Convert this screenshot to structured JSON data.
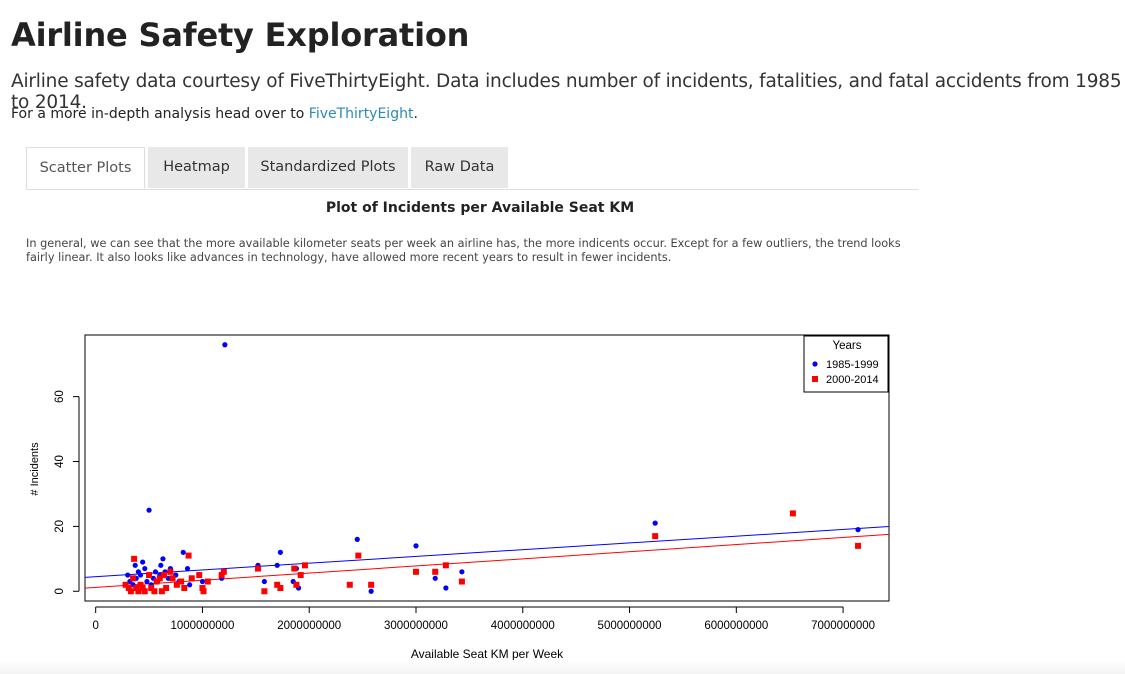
{
  "page": {
    "title": "Airline Safety Exploration",
    "lead": "Airline safety data courtesy of FiveThirtyEight. Data includes number of incidents, fatalities, and fatal accidents from 1985 to 2014.",
    "subline_prefix": "For a more in-depth analysis head over to ",
    "subline_link": "FiveThirtyEight",
    "subline_suffix": "."
  },
  "tabs": [
    {
      "label": "Scatter Plots",
      "active": true
    },
    {
      "label": "Heatmap",
      "active": false
    },
    {
      "label": "Standardized Plots",
      "active": false
    },
    {
      "label": "Raw Data",
      "active": false
    }
  ],
  "panel": {
    "plot_title": "Plot of Incidents per Available Seat KM",
    "description": "In general, we can see that the more available kilometer seats per week an airline has, the more indicents occur. Except for a few outliers, the trend looks fairly linear. It also looks like advances in technology, have allowed more recent years to result in fewer incidents."
  },
  "chart_data": {
    "type": "scatter",
    "xlabel": "Available Seat KM per Week",
    "ylabel": "# Incidents",
    "xlim": [
      -100000000,
      7430000000
    ],
    "ylim": [
      -3,
      79
    ],
    "xticks": [
      0,
      1000000000,
      2000000000,
      3000000000,
      4000000000,
      5000000000,
      6000000000,
      7000000000
    ],
    "xtick_labels": [
      "0",
      "1000000000",
      "2000000000",
      "3000000000",
      "4000000000",
      "5000000000",
      "6000000000",
      "7000000000"
    ],
    "yticks": [
      0,
      20,
      40,
      60
    ],
    "ytick_labels": [
      "0",
      "20",
      "40",
      "60"
    ],
    "grid": false,
    "legend": {
      "title": "Years",
      "position": "top-right"
    },
    "series": [
      {
        "name": "1985-1999",
        "color": "#0000ff",
        "marker": "circle",
        "trend": {
          "intercept": 4.5,
          "slope": 2.08e-09
        },
        "points": [
          [
            300000000,
            5
          ],
          [
            320000000,
            3
          ],
          [
            350000000,
            2
          ],
          [
            370000000,
            8
          ],
          [
            380000000,
            4
          ],
          [
            400000000,
            6
          ],
          [
            420000000,
            5
          ],
          [
            440000000,
            9
          ],
          [
            460000000,
            7
          ],
          [
            480000000,
            3
          ],
          [
            500000000,
            25
          ],
          [
            520000000,
            2
          ],
          [
            540000000,
            4
          ],
          [
            560000000,
            6
          ],
          [
            580000000,
            3
          ],
          [
            600000000,
            5
          ],
          [
            610000000,
            8
          ],
          [
            630000000,
            10
          ],
          [
            650000000,
            6
          ],
          [
            680000000,
            4
          ],
          [
            700000000,
            7
          ],
          [
            750000000,
            5
          ],
          [
            780000000,
            3
          ],
          [
            820000000,
            12
          ],
          [
            860000000,
            7
          ],
          [
            880000000,
            2
          ],
          [
            1000000000,
            3
          ],
          [
            1180000000,
            4
          ],
          [
            1210000000,
            76
          ],
          [
            1520000000,
            8
          ],
          [
            1580000000,
            3
          ],
          [
            1700000000,
            8
          ],
          [
            1730000000,
            12
          ],
          [
            1850000000,
            3
          ],
          [
            1880000000,
            7
          ],
          [
            1900000000,
            1
          ],
          [
            2450000000,
            16
          ],
          [
            2580000000,
            0
          ],
          [
            3000000000,
            14
          ],
          [
            3180000000,
            4
          ],
          [
            3280000000,
            1
          ],
          [
            3430000000,
            6
          ],
          [
            5240000000,
            21
          ],
          [
            7140000000,
            19
          ]
        ]
      },
      {
        "name": "2000-2014",
        "color": "#ff0000",
        "marker": "square",
        "trend": {
          "intercept": 1.2,
          "slope": 2.2e-09
        },
        "points": [
          [
            280000000,
            2
          ],
          [
            310000000,
            1
          ],
          [
            330000000,
            0
          ],
          [
            350000000,
            4
          ],
          [
            360000000,
            10
          ],
          [
            380000000,
            1
          ],
          [
            400000000,
            0
          ],
          [
            420000000,
            2
          ],
          [
            440000000,
            1
          ],
          [
            460000000,
            0
          ],
          [
            500000000,
            5
          ],
          [
            520000000,
            1
          ],
          [
            550000000,
            0
          ],
          [
            570000000,
            3
          ],
          [
            600000000,
            4
          ],
          [
            620000000,
            0
          ],
          [
            640000000,
            5
          ],
          [
            660000000,
            1
          ],
          [
            700000000,
            6
          ],
          [
            720000000,
            4
          ],
          [
            760000000,
            2
          ],
          [
            800000000,
            3
          ],
          [
            830000000,
            1
          ],
          [
            870000000,
            11
          ],
          [
            900000000,
            4
          ],
          [
            970000000,
            5
          ],
          [
            1000000000,
            1
          ],
          [
            1010000000,
            0
          ],
          [
            1050000000,
            3
          ],
          [
            1180000000,
            5
          ],
          [
            1200000000,
            6
          ],
          [
            1520000000,
            7
          ],
          [
            1580000000,
            0
          ],
          [
            1700000000,
            2
          ],
          [
            1730000000,
            1
          ],
          [
            1860000000,
            7
          ],
          [
            1880000000,
            2
          ],
          [
            1920000000,
            5
          ],
          [
            1960000000,
            8
          ],
          [
            2380000000,
            2
          ],
          [
            2460000000,
            11
          ],
          [
            2580000000,
            2
          ],
          [
            3000000000,
            6
          ],
          [
            3180000000,
            6
          ],
          [
            3280000000,
            8
          ],
          [
            3430000000,
            3
          ],
          [
            5240000000,
            17
          ],
          [
            6530000000,
            24
          ],
          [
            7140000000,
            14
          ]
        ]
      }
    ]
  }
}
